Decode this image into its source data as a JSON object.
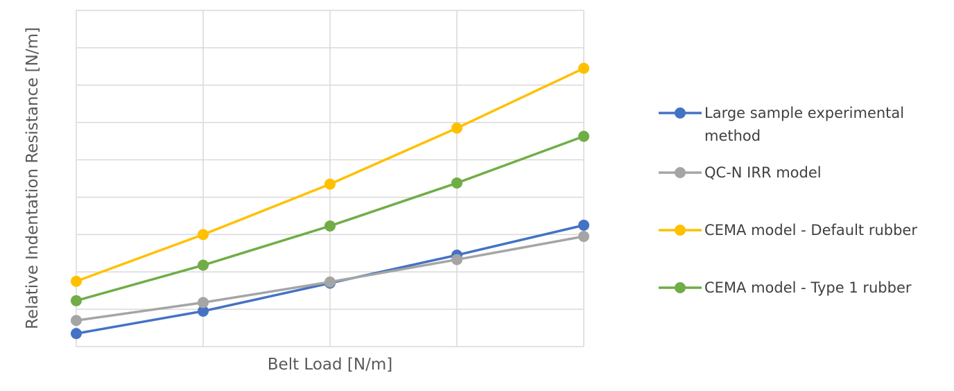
{
  "chart_data": {
    "type": "line",
    "title": "",
    "xlabel": "Belt Load [N/m]",
    "ylabel": "Relative Indentation Resistance [N/m]",
    "x": [
      1,
      2,
      3,
      4,
      5
    ],
    "xlim": [
      1,
      5
    ],
    "ylim": [
      0,
      9
    ],
    "x_ticks_labeled": false,
    "y_ticks_labeled": false,
    "grid": true,
    "legend_position": "right",
    "series": [
      {
        "name": "Large sample experimental method",
        "color": "#4472c4",
        "values": [
          0.35,
          0.95,
          1.7,
          2.45,
          3.25
        ]
      },
      {
        "name": "QC-N IRR model",
        "color": "#a5a5a5",
        "values": [
          0.7,
          1.18,
          1.73,
          2.33,
          2.95
        ]
      },
      {
        "name": "CEMA model - Default rubber",
        "color": "#ffc000",
        "values": [
          1.75,
          3.0,
          4.35,
          5.85,
          7.45
        ]
      },
      {
        "name": "CEMA model - Type 1 rubber",
        "color": "#70ad47",
        "values": [
          1.23,
          2.18,
          3.23,
          4.38,
          5.63
        ]
      }
    ]
  }
}
